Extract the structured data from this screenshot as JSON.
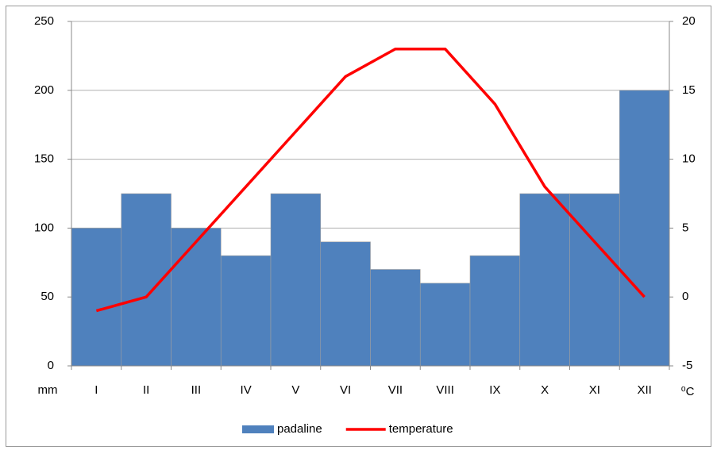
{
  "chart_data": {
    "type": "bar_line",
    "categories": [
      "I",
      "II",
      "III",
      "IV",
      "V",
      "VI",
      "VII",
      "VIII",
      "IX",
      "X",
      "XI",
      "XII"
    ],
    "series": [
      {
        "name": "padaline",
        "type": "bar",
        "color": "#4f81bd",
        "values": [
          100,
          125,
          100,
          80,
          125,
          90,
          70,
          60,
          80,
          125,
          125,
          200
        ]
      },
      {
        "name": "temperature",
        "type": "line",
        "axis": "y2",
        "color": "#ff0000",
        "values": [
          -1,
          0,
          4,
          8,
          12,
          16,
          18,
          18,
          14,
          8,
          4,
          0
        ]
      }
    ],
    "y_label": "mm",
    "y2_label": "⁰C",
    "ylim": [
      0,
      250
    ],
    "yticks": [
      0,
      50,
      100,
      150,
      200,
      250
    ],
    "y2lim": [
      -5,
      20
    ],
    "y2ticks": [
      -5,
      0,
      5,
      10,
      15,
      20
    ],
    "grid": true,
    "legend": "bottom"
  }
}
